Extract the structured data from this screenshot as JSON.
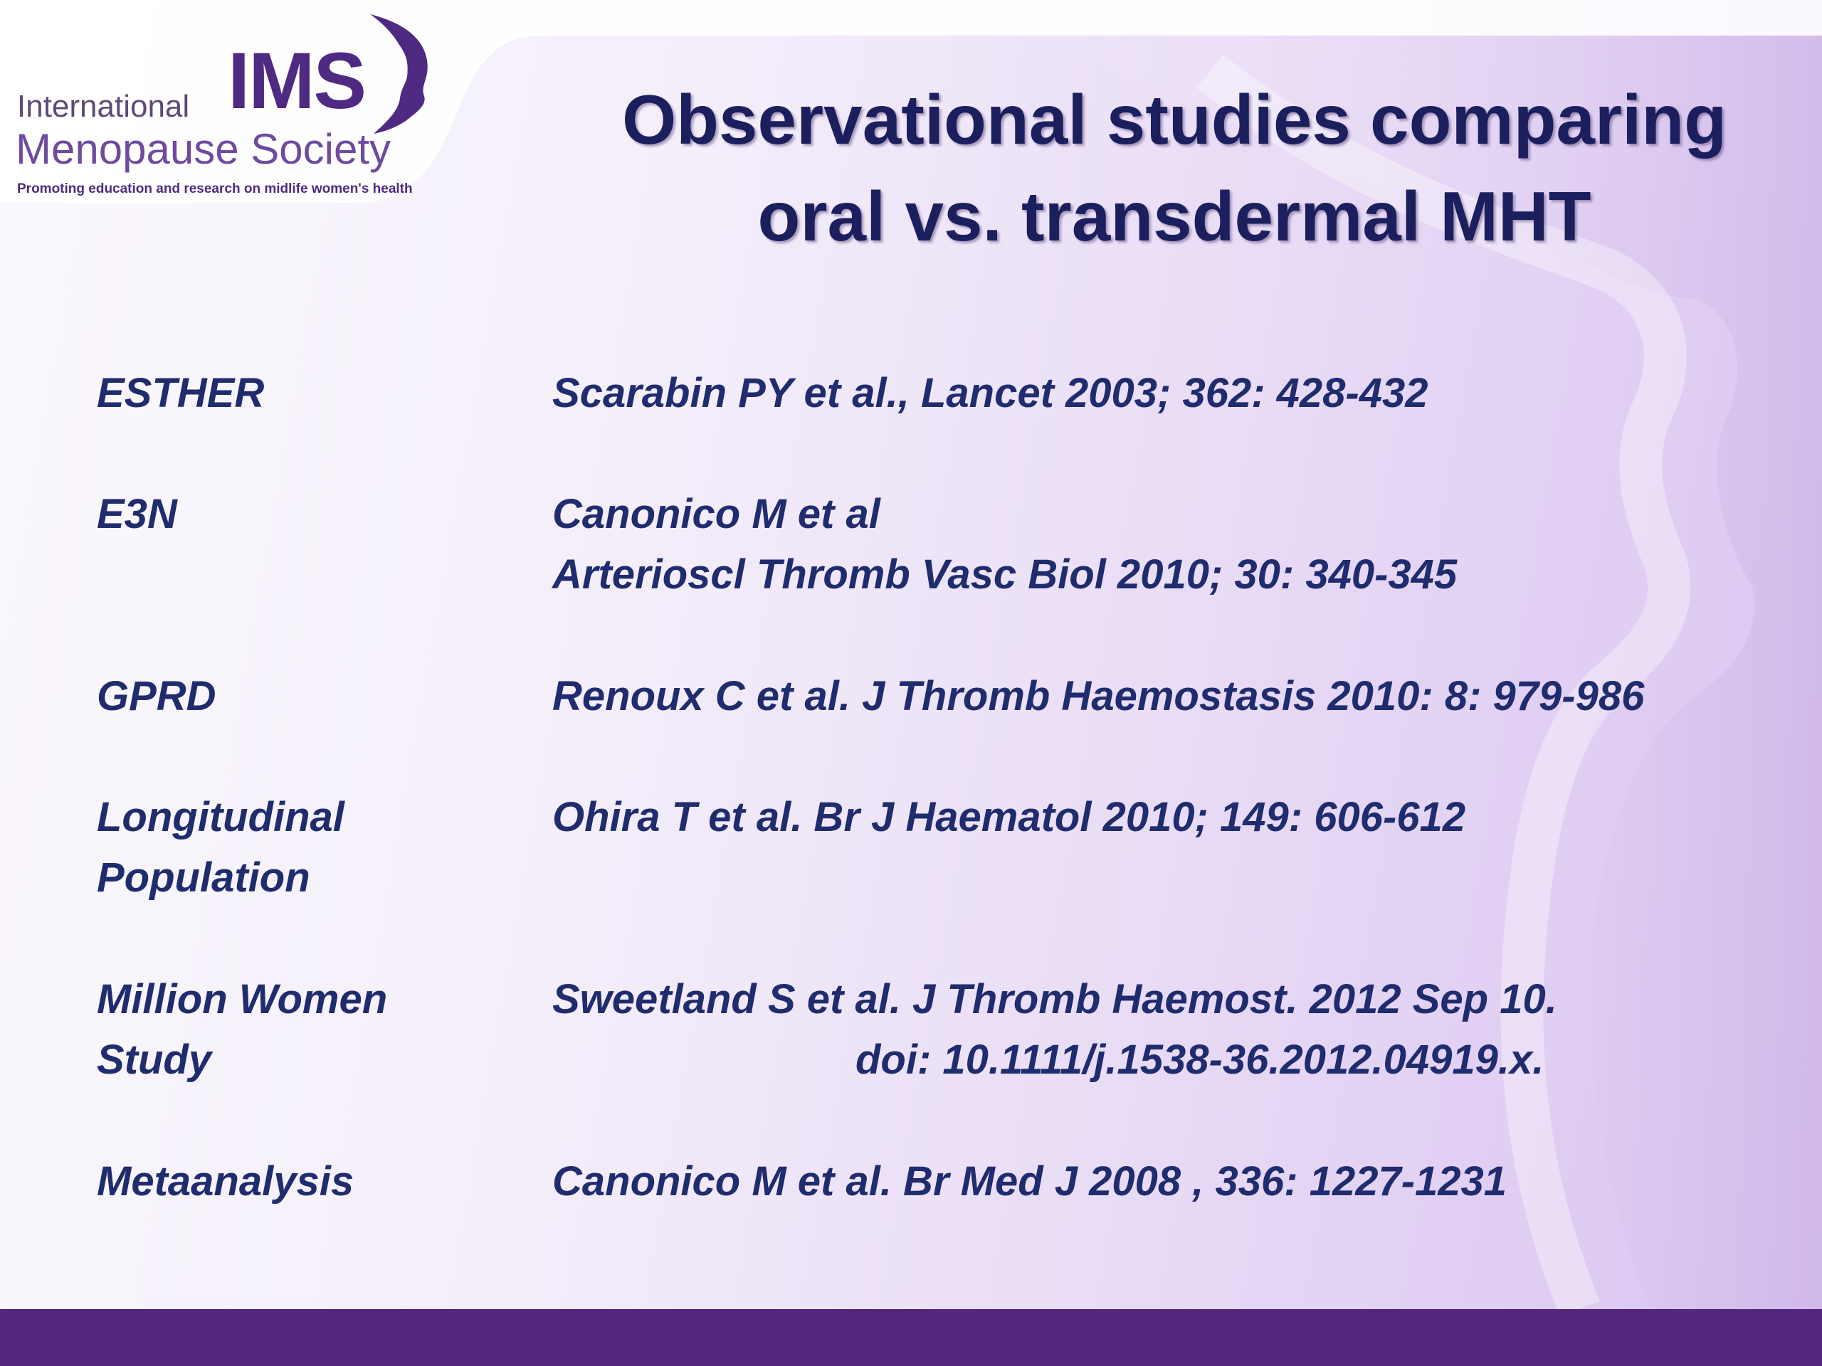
{
  "logo": {
    "acronym": "IMS",
    "line1": "International",
    "line2": "Menopause Society",
    "tagline": "Promoting education and research on midlife women's health"
  },
  "title": {
    "line1": "Observational studies comparing",
    "line2": "oral vs. transdermal MHT"
  },
  "references": [
    {
      "study": "ESTHER",
      "citation": "Scarabin PY et al., Lancet 2003; 362: 428-432",
      "citation_line2": ""
    },
    {
      "study": "E3N",
      "citation": "Canonico M et al",
      "citation_line2": "Arterioscl Thromb Vasc Biol 2010; 30: 340-345"
    },
    {
      "study": "GPRD",
      "citation": "Renoux C et al. J Thromb Haemostasis 2010: 8: 979-986",
      "citation_line2": ""
    },
    {
      "study": "Longitudinal\nPopulation",
      "citation": "Ohira T et al. Br J Haematol 2010; 149: 606-612",
      "citation_line2": ""
    },
    {
      "study": "Million Women\nStudy",
      "citation": "Sweetland S et al. J Thromb Haemost. 2012 Sep 10.",
      "citation_line2": "doi: 10.1111/j.1538-36.2012.04919.x."
    },
    {
      "study": "Metaanalysis",
      "citation": "Canonico M et al. Br Med J 2008 , 336: 1227-1231",
      "citation_line2": ""
    }
  ],
  "colors": {
    "title": "#1c1f5e",
    "text": "#1f2c6e",
    "brand_purple": "#52277d"
  }
}
